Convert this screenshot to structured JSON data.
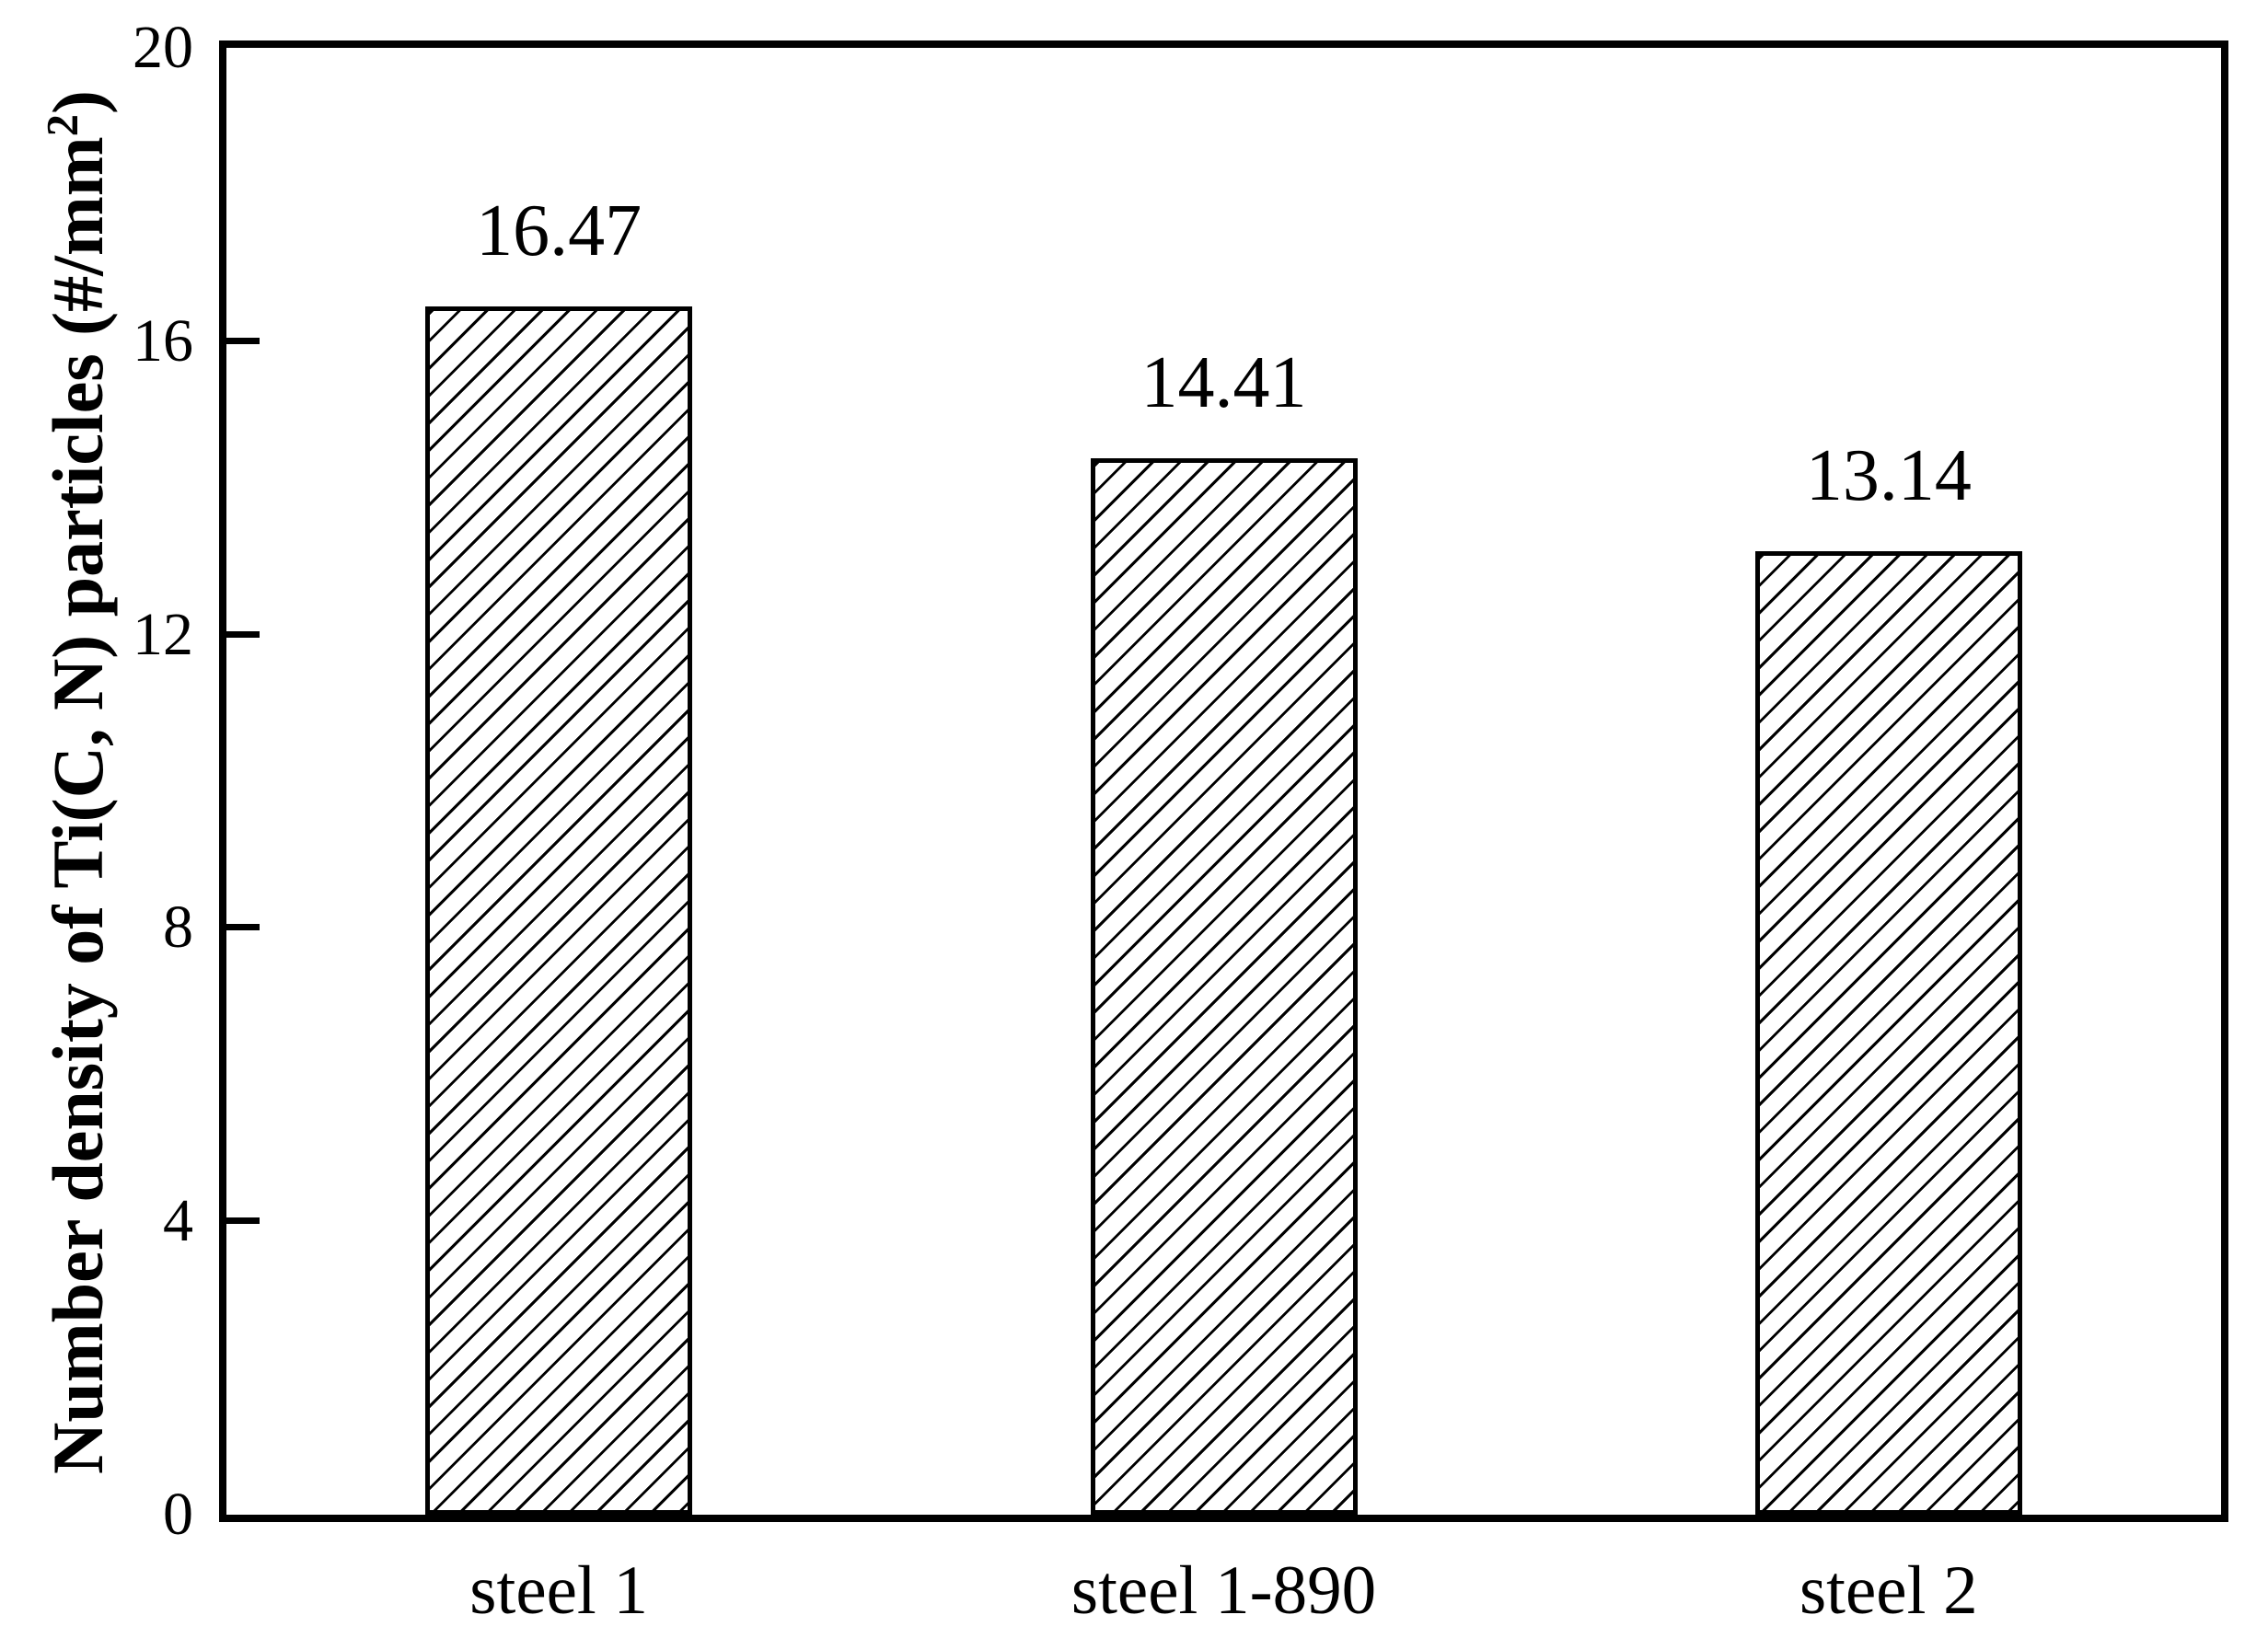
{
  "figure": {
    "background_color": "#ffffff",
    "ink_color": "#000000"
  },
  "chart_data": {
    "type": "bar",
    "title": "",
    "categories": [
      "steel 1",
      "steel 1-890",
      "steel 2"
    ],
    "values": [
      16.47,
      14.41,
      13.14
    ],
    "bar_value_labels": [
      "16.47",
      "14.41",
      "13.14"
    ],
    "ylabel": "Number density of Ti(C, N) particles (#/mm2)",
    "ylabel_parts": {
      "prefix": "Number density of Ti(C, N) particles (#/mm",
      "superscript": "2",
      "suffix": ")"
    },
    "xlabel": "",
    "ylim": [
      0,
      20
    ],
    "yticks": [
      0,
      4,
      8,
      12,
      16,
      20
    ],
    "ytick_labels": [
      "0",
      "4",
      "8",
      "12",
      "16",
      "20"
    ],
    "grid": false,
    "legend": null,
    "bar_style": {
      "fill_color": "#ffffff",
      "edge_color": "#000000",
      "hatch": "forward-diagonal"
    }
  }
}
